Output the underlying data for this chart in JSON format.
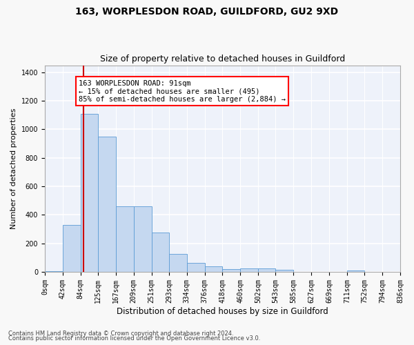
{
  "title1": "163, WORPLESDON ROAD, GUILDFORD, GU2 9XD",
  "title2": "Size of property relative to detached houses in Guildford",
  "xlabel": "Distribution of detached houses by size in Guildford",
  "ylabel": "Number of detached properties",
  "footer1": "Contains HM Land Registry data © Crown copyright and database right 2024.",
  "footer2": "Contains public sector information licensed under the Open Government Licence v3.0.",
  "annotation_line1": "163 WORPLESDON ROAD: 91sqm",
  "annotation_line2": "← 15% of detached houses are smaller (495)",
  "annotation_line3": "85% of semi-detached houses are larger (2,884) →",
  "bar_color": "#c5d8f0",
  "bar_edge_color": "#5b9bd5",
  "vline_color": "#cc0000",
  "vline_x": 91,
  "bin_edges": [
    0,
    42,
    84,
    125,
    167,
    209,
    251,
    293,
    334,
    376,
    418,
    460,
    502,
    543,
    585,
    627,
    669,
    711,
    752,
    794,
    836
  ],
  "bar_heights": [
    5,
    330,
    1110,
    950,
    460,
    460,
    275,
    125,
    65,
    38,
    20,
    22,
    22,
    12,
    0,
    0,
    0,
    10,
    0,
    0
  ],
  "ylim": [
    0,
    1450
  ],
  "yticks": [
    0,
    200,
    400,
    600,
    800,
    1000,
    1200,
    1400
  ],
  "fig_bg": "#f8f8f8",
  "ax_bg": "#eef2fa",
  "grid_color": "#ffffff",
  "title1_fontsize": 10,
  "title2_fontsize": 9,
  "xlabel_fontsize": 8.5,
  "ylabel_fontsize": 8,
  "tick_fontsize": 7,
  "footer_fontsize": 6
}
